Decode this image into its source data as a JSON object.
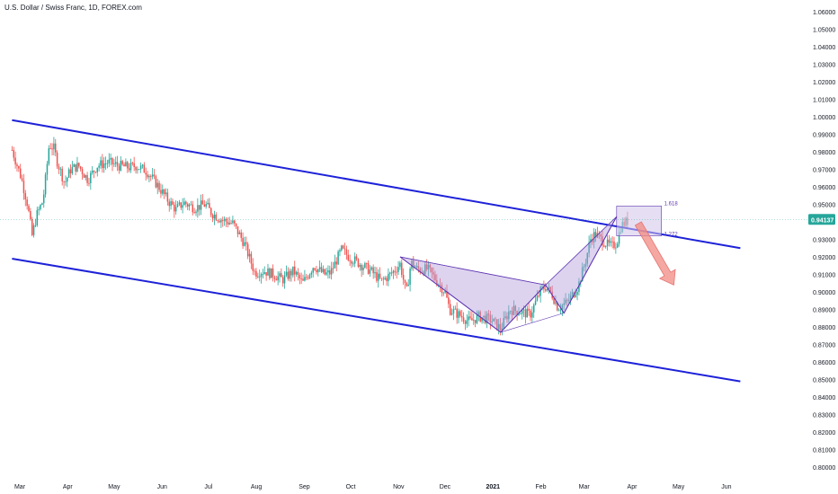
{
  "header": {
    "symbol_title": "U.S. Dollar / Swiss Franc, 1D, FOREX.com"
  },
  "colors": {
    "up": "#26a69a",
    "down": "#ef5350",
    "channel": "#1e22d8",
    "pattern_fill": "#b39ddb",
    "pattern_stroke": "#5e35b1",
    "prz_fill": "#d1c4e9",
    "arrow": "#f28b82",
    "axis_text": "#131722",
    "price_tag_bg": "#26a69a",
    "price_tag_text": "#ffffff"
  },
  "chart_data": {
    "type": "candlestick",
    "instrument": "U.S. Dollar / Swiss Franc",
    "timeframe": "1D",
    "broker": "FOREX.com",
    "last_price": "0.94137",
    "ylim": [
      0.795,
      1.065
    ],
    "y_ticks": [
      "1.06000",
      "1.05000",
      "1.04000",
      "1.03000",
      "1.02000",
      "1.01000",
      "1.00000",
      "0.99000",
      "0.98000",
      "0.97000",
      "0.96000",
      "0.95000",
      "0.94000",
      "0.93000",
      "0.92000",
      "0.91000",
      "0.90000",
      "0.89000",
      "0.88000",
      "0.87000",
      "0.86000",
      "0.85000",
      "0.84000",
      "0.83000",
      "0.82000",
      "0.81000",
      "0.80000"
    ],
    "x_labels": [
      {
        "label": "Mar",
        "date": "2020-03-01"
      },
      {
        "label": "Apr",
        "date": "2020-04-01"
      },
      {
        "label": "May",
        "date": "2020-05-01"
      },
      {
        "label": "Jun",
        "date": "2020-06-01"
      },
      {
        "label": "Jul",
        "date": "2020-07-01"
      },
      {
        "label": "Aug",
        "date": "2020-08-01"
      },
      {
        "label": "Sep",
        "date": "2020-09-01"
      },
      {
        "label": "Oct",
        "date": "2020-10-01"
      },
      {
        "label": "Nov",
        "date": "2020-11-01"
      },
      {
        "label": "Dec",
        "date": "2020-12-01"
      },
      {
        "label": "2021",
        "date": "2021-01-01"
      },
      {
        "label": "Feb",
        "date": "2021-02-01"
      },
      {
        "label": "Mar",
        "date": "2021-03-01"
      },
      {
        "label": "Apr",
        "date": "2021-04-01"
      },
      {
        "label": "May",
        "date": "2021-05-01"
      },
      {
        "label": "Jun",
        "date": "2021-06-01"
      }
    ],
    "price_path": [
      [
        "2020-02-25",
        0.981
      ],
      [
        "2020-03-02",
        0.965
      ],
      [
        "2020-03-06",
        0.95
      ],
      [
        "2020-03-09",
        0.932
      ],
      [
        "2020-03-12",
        0.944
      ],
      [
        "2020-03-16",
        0.952
      ],
      [
        "2020-03-18",
        0.967
      ],
      [
        "2020-03-20",
        0.984
      ],
      [
        "2020-03-23",
        0.982
      ],
      [
        "2020-03-25",
        0.975
      ],
      [
        "2020-03-30",
        0.962
      ],
      [
        "2020-04-03",
        0.97
      ],
      [
        "2020-04-08",
        0.972
      ],
      [
        "2020-04-14",
        0.964
      ],
      [
        "2020-04-20",
        0.972
      ],
      [
        "2020-04-27",
        0.974
      ],
      [
        "2020-05-04",
        0.972
      ],
      [
        "2020-05-11",
        0.971
      ],
      [
        "2020-05-15",
        0.972
      ],
      [
        "2020-05-22",
        0.969
      ],
      [
        "2020-05-29",
        0.961
      ],
      [
        "2020-06-05",
        0.952
      ],
      [
        "2020-06-10",
        0.947
      ],
      [
        "2020-06-15",
        0.951
      ],
      [
        "2020-06-22",
        0.948
      ],
      [
        "2020-06-29",
        0.95
      ],
      [
        "2020-07-03",
        0.945
      ],
      [
        "2020-07-10",
        0.941
      ],
      [
        "2020-07-17",
        0.939
      ],
      [
        "2020-07-24",
        0.928
      ],
      [
        "2020-07-31",
        0.911
      ],
      [
        "2020-08-06",
        0.912
      ],
      [
        "2020-08-12",
        0.91
      ],
      [
        "2020-08-18",
        0.907
      ],
      [
        "2020-08-25",
        0.912
      ],
      [
        "2020-08-31",
        0.905
      ],
      [
        "2020-09-07",
        0.915
      ],
      [
        "2020-09-14",
        0.91
      ],
      [
        "2020-09-18",
        0.911
      ],
      [
        "2020-09-25",
        0.924
      ],
      [
        "2020-09-30",
        0.92
      ],
      [
        "2020-10-07",
        0.916
      ],
      [
        "2020-10-14",
        0.912
      ],
      [
        "2020-10-21",
        0.906
      ],
      [
        "2020-10-28",
        0.911
      ],
      [
        "2020-11-02",
        0.916
      ],
      [
        "2020-11-06",
        0.899
      ],
      [
        "2020-11-09",
        0.917
      ],
      [
        "2020-11-13",
        0.913
      ],
      [
        "2020-11-20",
        0.913
      ],
      [
        "2020-11-26",
        0.906
      ],
      [
        "2020-12-01",
        0.9
      ],
      [
        "2020-12-04",
        0.89
      ],
      [
        "2020-12-10",
        0.887
      ],
      [
        "2020-12-17",
        0.883
      ],
      [
        "2020-12-23",
        0.886
      ],
      [
        "2020-12-31",
        0.884
      ],
      [
        "2021-01-06",
        0.879
      ],
      [
        "2021-01-12",
        0.89
      ],
      [
        "2021-01-18",
        0.889
      ],
      [
        "2021-01-25",
        0.887
      ],
      [
        "2021-02-01",
        0.901
      ],
      [
        "2021-02-04",
        0.903
      ],
      [
        "2021-02-08",
        0.899
      ],
      [
        "2021-02-12",
        0.891
      ],
      [
        "2021-02-18",
        0.894
      ],
      [
        "2021-02-25",
        0.903
      ],
      [
        "2021-03-02",
        0.918
      ],
      [
        "2021-03-05",
        0.93
      ],
      [
        "2021-03-08",
        0.933
      ],
      [
        "2021-03-12",
        0.93
      ],
      [
        "2021-03-16",
        0.927
      ],
      [
        "2021-03-19",
        0.926
      ],
      [
        "2021-03-22",
        0.928
      ],
      [
        "2021-03-25",
        0.938
      ],
      [
        "2021-03-30",
        0.941
      ]
    ],
    "drawings": {
      "channel_upper": [
        [
          "2020-02-25",
          0.998
        ],
        [
          "2021-06-10",
          0.925
        ]
      ],
      "channel_lower": [
        [
          "2020-02-25",
          0.919
        ],
        [
          "2021-06-10",
          0.849
        ]
      ],
      "harmonic_pattern": {
        "X": [
          "2020-11-02",
          0.92
        ],
        "A": [
          "2021-01-06",
          0.877
        ],
        "B": [
          "2021-02-04",
          0.904
        ],
        "C": [
          "2021-02-16",
          0.888
        ],
        "D": [
          "2021-03-22",
          0.943
        ]
      },
      "prz_box": {
        "from": "2021-03-22",
        "to": "2021-04-20",
        "top": 0.949,
        "bottom": 0.932,
        "upper_label": "1.618",
        "lower_label": "1.272"
      },
      "target_arrow": {
        "from": [
          "2021-04-05",
          0.939
        ],
        "to": [
          "2021-04-28",
          0.904
        ]
      }
    }
  }
}
